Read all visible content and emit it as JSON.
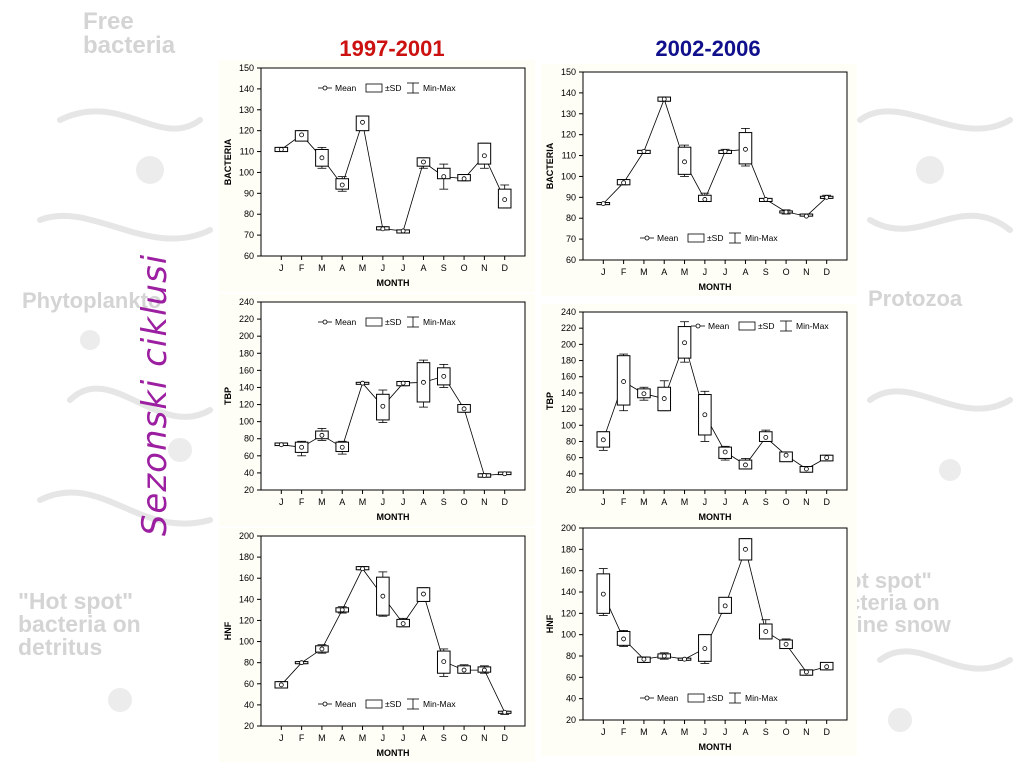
{
  "page": {
    "side_title": "Sezonski ciklusi",
    "background_words": {
      "free_bacteria": "Free\nbacteria",
      "phyto": "Phytoplankto",
      "protozoa": "Protozoa",
      "hot_spot_left": "\"Hot spot\"\nbacteria on\ndetritus",
      "hot_spot_right": "ot spot\"\ncteria on\nrine snow"
    },
    "period_left": "1997-2001",
    "period_right": "2002-2006",
    "colors": {
      "period_left": "#cc1111",
      "period_right": "#10108c",
      "side_title": "#9b1fa0",
      "panel_background": "#fffef6"
    }
  },
  "legend_labels": {
    "mean": "Mean",
    "sd": "±SD",
    "minmax": "Min-Max"
  },
  "chart_data": [
    {
      "id": "bacteria-1997",
      "type": "box",
      "period": "1997-2001",
      "ylabel": "BACTERIA",
      "xlabel": "MONTH",
      "categories": [
        "J",
        "F",
        "M",
        "A",
        "M",
        "J",
        "J",
        "A",
        "S",
        "O",
        "N",
        "D"
      ],
      "ylim": [
        60,
        150
      ],
      "yticks": [
        60,
        70,
        80,
        90,
        100,
        110,
        120,
        130,
        140,
        150
      ],
      "legend": "top-center",
      "series": [
        {
          "mean": [
            111,
            118,
            107,
            94,
            124,
            73,
            72,
            105,
            98,
            97,
            108,
            87
          ],
          "sd_low": [
            110,
            115,
            103,
            92,
            120,
            72.5,
            71,
            103,
            97,
            96,
            104,
            83
          ],
          "sd_high": [
            112,
            120,
            111,
            97,
            127,
            74,
            72.5,
            107,
            102,
            99,
            114,
            92
          ],
          "min": [
            110,
            115,
            102,
            91,
            120,
            72.5,
            71,
            102,
            92,
            96,
            102,
            83
          ],
          "max": [
            112,
            120,
            112,
            98,
            127,
            74,
            72.5,
            107,
            104,
            99,
            114,
            94
          ]
        }
      ]
    },
    {
      "id": "bacteria-2002",
      "type": "box",
      "period": "2002-2006",
      "ylabel": "BACTERIA",
      "xlabel": "MONTH",
      "categories": [
        "J",
        "F",
        "M",
        "A",
        "M",
        "J",
        "J",
        "A",
        "S",
        "O",
        "N",
        "D"
      ],
      "ylim": [
        60,
        150
      ],
      "yticks": [
        60,
        70,
        80,
        90,
        100,
        110,
        120,
        130,
        140,
        150
      ],
      "legend": "bottom-center",
      "series": [
        {
          "mean": [
            87,
            97,
            112,
            137,
            107,
            89,
            112,
            113,
            89,
            83,
            81,
            90
          ],
          "sd_low": [
            86.5,
            96,
            111,
            136,
            101,
            88,
            111,
            106,
            88,
            82.5,
            81,
            89.5
          ],
          "sd_high": [
            87.5,
            98.5,
            112.5,
            138,
            114,
            91,
            112.5,
            121,
            89.5,
            83.5,
            82,
            90.5
          ],
          "min": [
            86.5,
            96,
            111,
            136,
            100,
            88,
            111,
            105,
            88,
            82,
            81,
            89.5
          ],
          "max": [
            87.5,
            98.5,
            112.5,
            138,
            115,
            92,
            113,
            123,
            89.5,
            84,
            82,
            91
          ]
        }
      ]
    },
    {
      "id": "tbp-1997",
      "type": "box",
      "period": "1997-2001",
      "ylabel": "TBP",
      "xlabel": "MONTH",
      "categories": [
        "J",
        "F",
        "M",
        "A",
        "M",
        "J",
        "J",
        "A",
        "S",
        "O",
        "N",
        "D"
      ],
      "ylim": [
        20,
        240
      ],
      "yticks": [
        20,
        40,
        60,
        80,
        100,
        120,
        140,
        160,
        180,
        200,
        220,
        240
      ],
      "legend": "top-center",
      "series": [
        {
          "mean": [
            73,
            70,
            84,
            70,
            145,
            118,
            145,
            146,
            153,
            115,
            37,
            39
          ],
          "sd_low": [
            72,
            64,
            80,
            65,
            144,
            102,
            142,
            123,
            143,
            111,
            35,
            38
          ],
          "sd_high": [
            75,
            76,
            89,
            76,
            146,
            132,
            147,
            169,
            163,
            120,
            39,
            41
          ],
          "min": [
            72,
            60,
            78,
            62,
            144,
            99,
            142,
            117,
            140,
            111,
            35,
            38
          ],
          "max": [
            75,
            77,
            92,
            77,
            146,
            137,
            147,
            172,
            167,
            120,
            39,
            41
          ]
        }
      ]
    },
    {
      "id": "tbp-2002",
      "type": "box",
      "period": "2002-2006",
      "ylabel": "TBP",
      "xlabel": "MONTH",
      "categories": [
        "J",
        "F",
        "M",
        "A",
        "M",
        "J",
        "J",
        "A",
        "S",
        "O",
        "N",
        "D"
      ],
      "ylim": [
        20,
        240
      ],
      "yticks": [
        20,
        40,
        60,
        80,
        100,
        120,
        140,
        160,
        180,
        200,
        220,
        240
      ],
      "legend": "top-right",
      "series": [
        {
          "mean": [
            82,
            154,
            139,
            133,
            202,
            113,
            67,
            51,
            85,
            63,
            46,
            60
          ],
          "sd_low": [
            73,
            125,
            134,
            118,
            183,
            88,
            59,
            46,
            80,
            55,
            42,
            56
          ],
          "sd_high": [
            92,
            186,
            145,
            147,
            222,
            138,
            73,
            57,
            92,
            67,
            49,
            63
          ],
          "min": [
            69,
            118,
            131,
            118,
            178,
            80,
            57,
            46,
            80,
            55,
            42,
            56
          ],
          "max": [
            92,
            188,
            147,
            155,
            228,
            142,
            74,
            59,
            94,
            67,
            49,
            63
          ]
        }
      ]
    },
    {
      "id": "hnf-1997",
      "type": "box",
      "period": "1997-2001",
      "ylabel": "HNF",
      "xlabel": "MONTH",
      "categories": [
        "J",
        "F",
        "M",
        "A",
        "M",
        "J",
        "J",
        "A",
        "S",
        "O",
        "N",
        "D"
      ],
      "ylim": [
        20,
        200
      ],
      "yticks": [
        20,
        40,
        60,
        80,
        100,
        120,
        140,
        160,
        180,
        200
      ],
      "legend": "bottom-center",
      "series": [
        {
          "mean": [
            59,
            80,
            93,
            130,
            169,
            143,
            117,
            145,
            81,
            73,
            73,
            33
          ],
          "sd_low": [
            56,
            79,
            90,
            128,
            168,
            125,
            114,
            138,
            70,
            70,
            71,
            32
          ],
          "sd_high": [
            62,
            81,
            96,
            132,
            171,
            161,
            121,
            151,
            91,
            77,
            76,
            34
          ],
          "min": [
            56,
            79,
            89,
            127,
            168,
            124,
            114,
            138,
            67,
            70,
            70,
            31
          ],
          "max": [
            62,
            81,
            97,
            133,
            171,
            166,
            122,
            151,
            93,
            78,
            77,
            34
          ]
        }
      ]
    },
    {
      "id": "hnf-2002",
      "type": "box",
      "period": "2002-2006",
      "ylabel": "HNF",
      "xlabel": "MONTH",
      "categories": [
        "J",
        "F",
        "M",
        "A",
        "M",
        "J",
        "J",
        "A",
        "S",
        "O",
        "N",
        "D"
      ],
      "ylim": [
        20,
        200
      ],
      "yticks": [
        20,
        40,
        60,
        80,
        100,
        120,
        140,
        160,
        180,
        200
      ],
      "legend": "bottom-center",
      "series": [
        {
          "mean": [
            138,
            96,
            77,
            80,
            77,
            87,
            127,
            180,
            103,
            91,
            65,
            70
          ],
          "sd_low": [
            120,
            90,
            74,
            78,
            76,
            75,
            120,
            170,
            96,
            87,
            62,
            67
          ],
          "sd_high": [
            157,
            103,
            79,
            82,
            78,
            100,
            135,
            190,
            110,
            95,
            67,
            74
          ],
          "min": [
            118,
            89,
            74,
            77,
            76,
            73,
            120,
            170,
            96,
            87,
            62,
            67
          ],
          "max": [
            162,
            104,
            79,
            83,
            78,
            100,
            135,
            190,
            114,
            96,
            67,
            74
          ]
        }
      ]
    }
  ]
}
